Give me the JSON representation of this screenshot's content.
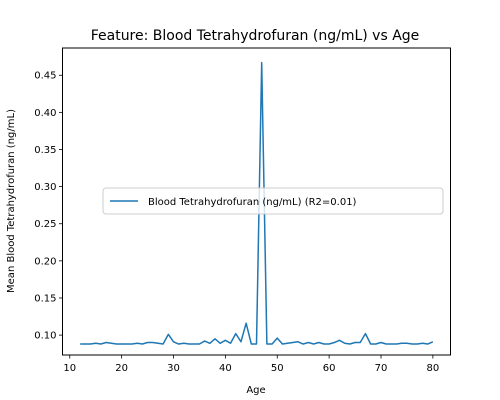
{
  "chart_data": {
    "type": "line",
    "title": "Feature: Blood Tetrahydrofuran (ng/mL) vs Age",
    "xlabel": "Age",
    "ylabel": "Mean Blood Tetrahydrofuran (ng/mL)",
    "xlim": [
      8.6,
      83.4
    ],
    "ylim": [
      0.0732,
      0.4867
    ],
    "x_ticks": [
      10,
      20,
      30,
      40,
      50,
      60,
      70,
      80
    ],
    "x_tick_labels": [
      "10",
      "20",
      "30",
      "40",
      "50",
      "60",
      "70",
      "80"
    ],
    "y_ticks": [
      0.1,
      0.15,
      0.2,
      0.25,
      0.3,
      0.35,
      0.4,
      0.45
    ],
    "y_tick_labels": [
      "0.10",
      "0.15",
      "0.20",
      "0.25",
      "0.30",
      "0.35",
      "0.40",
      "0.45"
    ],
    "grid": false,
    "legend_position": "center-right",
    "series": [
      {
        "name": "Blood Tetrahydrofuran (ng/mL) (R2=0.01)",
        "color": "#1f77b4",
        "x": [
          12,
          13,
          14,
          15,
          16,
          17,
          18,
          19,
          20,
          21,
          22,
          23,
          24,
          25,
          26,
          27,
          28,
          29,
          30,
          31,
          32,
          33,
          34,
          35,
          36,
          37,
          38,
          39,
          40,
          41,
          42,
          43,
          44,
          45,
          46,
          47,
          48,
          49,
          50,
          51,
          52,
          53,
          54,
          55,
          56,
          57,
          58,
          59,
          60,
          61,
          62,
          63,
          64,
          65,
          66,
          67,
          68,
          69,
          70,
          71,
          72,
          73,
          74,
          75,
          76,
          77,
          78,
          79,
          80
        ],
        "y": [
          0.088,
          0.088,
          0.088,
          0.089,
          0.088,
          0.09,
          0.089,
          0.088,
          0.088,
          0.088,
          0.088,
          0.089,
          0.088,
          0.09,
          0.09,
          0.089,
          0.088,
          0.101,
          0.091,
          0.088,
          0.089,
          0.088,
          0.088,
          0.088,
          0.092,
          0.089,
          0.095,
          0.089,
          0.093,
          0.089,
          0.102,
          0.091,
          0.116,
          0.088,
          0.088,
          0.467,
          0.088,
          0.088,
          0.096,
          0.088,
          0.089,
          0.09,
          0.091,
          0.088,
          0.09,
          0.088,
          0.09,
          0.088,
          0.088,
          0.09,
          0.093,
          0.089,
          0.088,
          0.09,
          0.09,
          0.102,
          0.088,
          0.088,
          0.09,
          0.088,
          0.088,
          0.088,
          0.089,
          0.089,
          0.088,
          0.088,
          0.089,
          0.088,
          0.091
        ]
      }
    ]
  }
}
